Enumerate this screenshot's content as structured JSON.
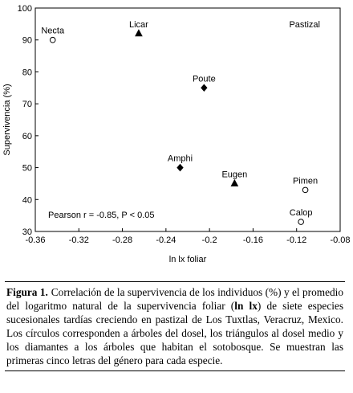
{
  "chart_data": {
    "type": "scatter",
    "xlabel": "ln lx foliar",
    "ylabel": "Supervivencia (%)",
    "xlim": [
      -0.36,
      -0.08
    ],
    "xticks": [
      -0.36,
      -0.32,
      -0.28,
      -0.24,
      -0.2,
      -0.16,
      -0.12,
      -0.08
    ],
    "ylim": [
      30,
      100
    ],
    "yticks": [
      30,
      40,
      50,
      60,
      70,
      80,
      90,
      100
    ],
    "annotations": [
      "Pastizal",
      "Pearson r = -0.85, P < 0.05"
    ],
    "color": "#000000",
    "points": [
      {
        "label": "Necta",
        "x": -0.344,
        "y": 90,
        "marker": "circle"
      },
      {
        "label": "Licar",
        "x": -0.265,
        "y": 92,
        "marker": "triangle"
      },
      {
        "label": "Poute",
        "x": -0.205,
        "y": 75,
        "marker": "diamond"
      },
      {
        "label": "Amphi",
        "x": -0.227,
        "y": 50,
        "marker": "diamond"
      },
      {
        "label": "Eugen",
        "x": -0.177,
        "y": 45,
        "marker": "triangle"
      },
      {
        "label": "Pimen",
        "x": -0.112,
        "y": 43,
        "marker": "circle"
      },
      {
        "label": "Calop",
        "x": -0.116,
        "y": 33,
        "marker": "circle"
      }
    ]
  },
  "caption": {
    "label": "Figura 1.",
    "parts": [
      "Correlación de la supervivencia de los individuos (%) y el promedio del logaritmo natural de la supervivencia foliar (",
      "ln lx",
      ") de siete especies sucesionales tardías creciendo en pastizal de Los Tuxtlas, Veracruz, Mexico. Los círculos corresponden a árboles del dosel, los triángulos al dosel medio y los diamantes a los árboles que habitan el sotobosque. Se muestran las primeras cinco letras del género para cada especie."
    ]
  }
}
